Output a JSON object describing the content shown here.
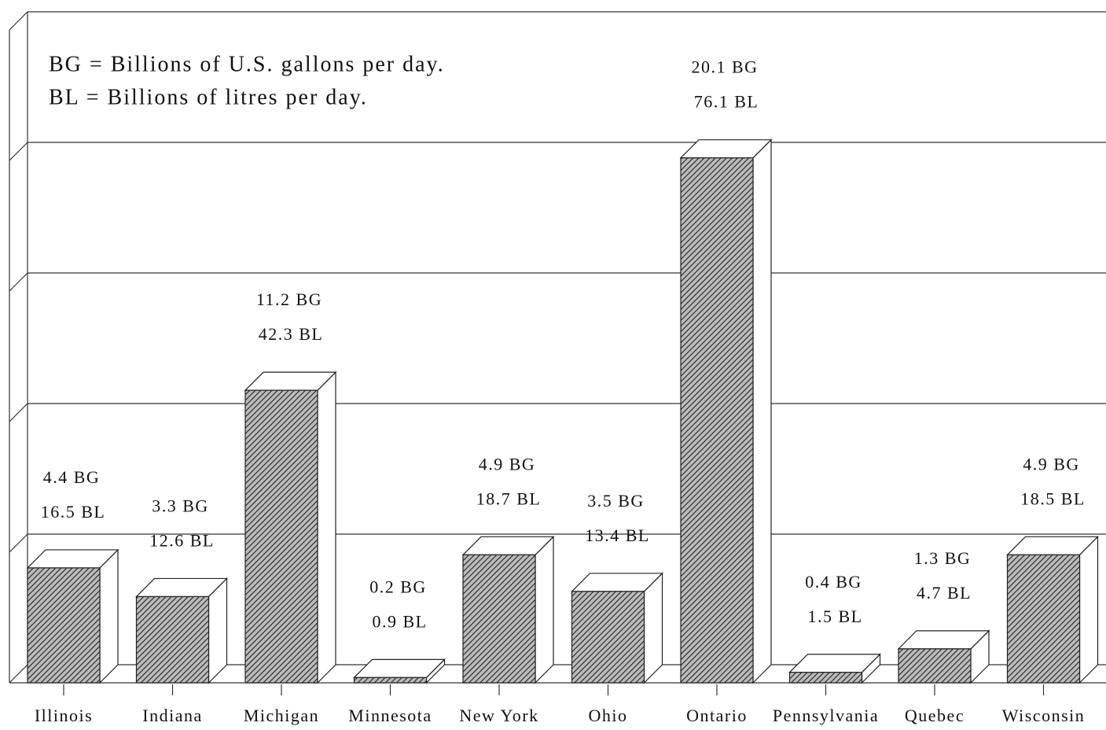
{
  "chart_data": {
    "type": "bar3d",
    "annotations": [
      "BG = Billions of U.S. gallons per day.",
      "BL = Billions of litres per day."
    ],
    "categories": [
      "Illinois",
      "Indiana",
      "Michigan",
      "Minnesota",
      "New York",
      "Ohio",
      "Ontario",
      "Pennsylvania",
      "Quebec",
      "Wisconsin"
    ],
    "values": [
      4.4,
      3.3,
      11.2,
      0.2,
      4.9,
      3.5,
      20.1,
      0.4,
      1.3,
      4.9
    ],
    "value_labels": [
      "4.4 BG",
      "3.3 BG",
      "11.2 BG",
      "0.2 BG",
      "4.9 BG",
      "3.5 BG",
      "20.1 BG",
      "0.4 BG",
      "1.3 BG",
      "4.9 BG"
    ],
    "litres_values": [
      16.5,
      12.6,
      42.3,
      0.9,
      18.7,
      13.4,
      76.1,
      1.5,
      4.7,
      18.5
    ],
    "litres_labels": [
      "16.5 BL",
      "12.6 BL",
      "42.3 BL",
      "0.9 BL",
      "18.7 BL",
      "13.4 BL",
      "76.1 BL",
      "1.5 BL",
      "4.7 BL",
      "18.5 BL"
    ],
    "ylim": [
      0,
      25
    ],
    "yticks": [
      0,
      5,
      10,
      15,
      20,
      25
    ],
    "grid": true
  }
}
